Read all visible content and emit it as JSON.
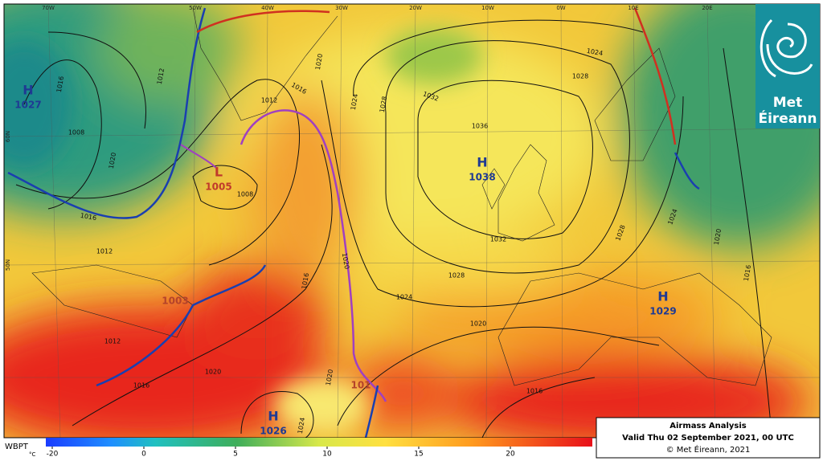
{
  "map": {
    "longitude_labels": [
      "70W",
      "50W",
      "40W",
      "30W",
      "20W",
      "10W",
      "0W",
      "10E",
      "20E"
    ],
    "latitude_labels": [
      "60N",
      "50N"
    ],
    "pressure_centres": [
      {
        "symbol": "H",
        "value": 1027,
        "color": "#1f3a93"
      },
      {
        "symbol": "L",
        "value": 1005,
        "color": "#c0392b"
      },
      {
        "symbol": "H",
        "value": 1038,
        "color": "#1f3a93"
      },
      {
        "symbol": "H",
        "value": 1029,
        "color": "#1f3a93"
      },
      {
        "symbol": "H",
        "value": 1026,
        "color": "#1f3a93"
      }
    ],
    "other_centre_labels": [
      {
        "text": "1003",
        "color": "#b5432a"
      },
      {
        "text": "101",
        "color": "#b5432a"
      }
    ],
    "isobar_labels": [
      "1016",
      "1012",
      "1008",
      "1020",
      "1016",
      "1012",
      "1008",
      "1012",
      "1016",
      "1020",
      "1024",
      "1028",
      "1032",
      "1036",
      "1032",
      "1028",
      "1024",
      "1020",
      "1016",
      "1024",
      "1028",
      "1028",
      "1024",
      "1020",
      "1016",
      "1012",
      "1020",
      "1016",
      "1020",
      "1024",
      "1020",
      "1016"
    ]
  },
  "colorbar": {
    "name": "WBPT",
    "unit": "°C",
    "ticks": [
      -20,
      0,
      5,
      10,
      15,
      20
    ]
  },
  "info_box": {
    "title": "Airmass Analysis",
    "valid": "Valid Thu 02 September 2021, 00 UTC",
    "copyright": "© Met Éireann, 2021"
  },
  "logo": {
    "lines": [
      "Met",
      "Éireann"
    ]
  }
}
